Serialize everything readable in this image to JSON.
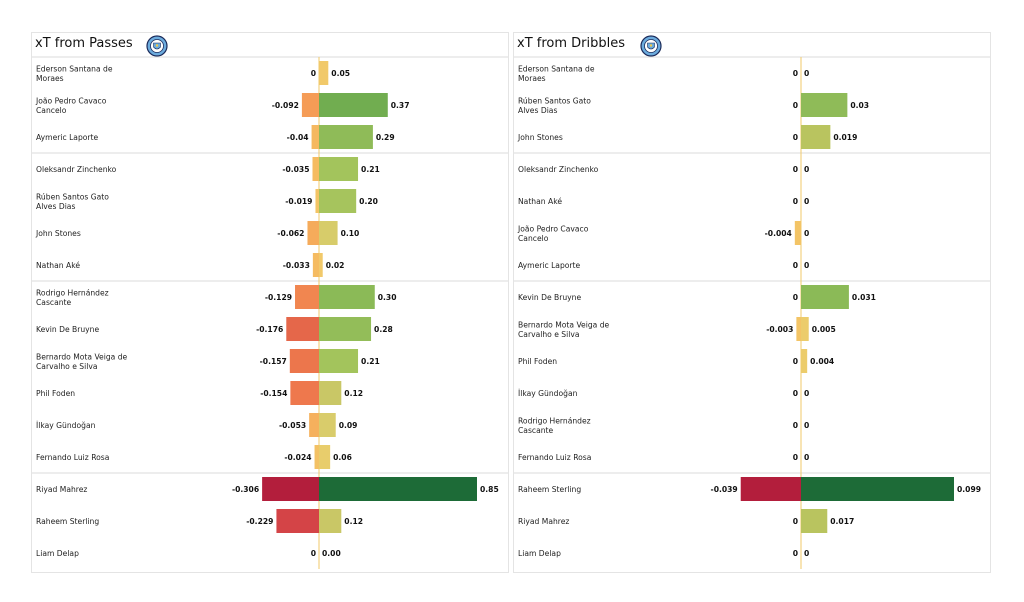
{
  "chart_data": [
    {
      "type": "bar",
      "title": "xT from Passes",
      "logo": "club-crest-icon",
      "scale_max": 0.85,
      "groups": [
        3,
        7,
        13,
        16
      ],
      "rows": [
        {
          "player": [
            "Ederson Santana de",
            "Moraes"
          ],
          "neg": 0,
          "pos": 0.05,
          "neg_label": "0",
          "pos_label": "0.05",
          "neg_color": "#f1c96a",
          "pos_color": "#f1c96a"
        },
        {
          "player": [
            "João Pedro Cavaco",
            "Cancelo"
          ],
          "neg": -0.092,
          "pos": 0.37,
          "neg_label": "-0.092",
          "pos_label": "0.37",
          "neg_color": "#f59c56",
          "pos_color": "#71ad50"
        },
        {
          "player": [
            "Aymeric  Laporte"
          ],
          "neg": -0.04,
          "pos": 0.29,
          "neg_label": "-0.04",
          "pos_label": "0.29",
          "neg_color": "#f5b860",
          "pos_color": "#8fbb58"
        },
        {
          "player": [
            "Oleksandr Zinchenko"
          ],
          "neg": -0.035,
          "pos": 0.21,
          "neg_label": "-0.035",
          "pos_label": "0.21",
          "neg_color": "#f5bb61",
          "pos_color": "#a3c45c"
        },
        {
          "player": [
            "Rúben  Santos Gato",
            "Alves Dias"
          ],
          "neg": -0.019,
          "pos": 0.2,
          "neg_label": "-0.019",
          "pos_label": "0.20",
          "neg_color": "#f3c466",
          "pos_color": "#a6c45d"
        },
        {
          "player": [
            "John Stones"
          ],
          "neg": -0.062,
          "pos": 0.1,
          "neg_label": "-0.062",
          "pos_label": "0.10",
          "neg_color": "#f5ab5b",
          "pos_color": "#d7cc6a"
        },
        {
          "player": [
            "Nathan Aké"
          ],
          "neg": -0.033,
          "pos": 0.02,
          "neg_label": "-0.033",
          "pos_label": "0.02",
          "neg_color": "#f5bb61",
          "pos_color": "#f1c96a"
        },
        {
          "player": [
            "Rodrigo Hernández",
            "Cascante"
          ],
          "neg": -0.129,
          "pos": 0.3,
          "neg_label": "-0.129",
          "pos_label": "0.30",
          "neg_color": "#f18650",
          "pos_color": "#8bba57"
        },
        {
          "player": [
            "Kevin De Bruyne"
          ],
          "neg": -0.176,
          "pos": 0.28,
          "neg_label": "-0.176",
          "pos_label": "0.28",
          "neg_color": "#e5674a",
          "pos_color": "#93bd59"
        },
        {
          "player": [
            "Bernardo Mota Veiga de",
            "Carvalho e Silva"
          ],
          "neg": -0.157,
          "pos": 0.21,
          "neg_label": "-0.157",
          "pos_label": "0.21",
          "neg_color": "#ec764c",
          "pos_color": "#a3c45c"
        },
        {
          "player": [
            "Phil Foden"
          ],
          "neg": -0.154,
          "pos": 0.12,
          "neg_label": "-0.154",
          "pos_label": "0.12",
          "neg_color": "#ee784d",
          "pos_color": "#c9c766"
        },
        {
          "player": [
            "İlkay Gündoğan"
          ],
          "neg": -0.053,
          "pos": 0.09,
          "neg_label": "-0.053",
          "pos_label": "0.09",
          "neg_color": "#f5b05d",
          "pos_color": "#d9cc6b"
        },
        {
          "player": [
            "Fernando Luiz Rosa"
          ],
          "neg": -0.024,
          "pos": 0.06,
          "neg_label": "-0.024",
          "pos_label": "0.06",
          "neg_color": "#f3c164",
          "pos_color": "#e8cd6c"
        },
        {
          "player": [
            "Riyad Mahrez"
          ],
          "neg": -0.306,
          "pos": 0.85,
          "neg_label": "-0.306",
          "pos_label": "0.85",
          "neg_color": "#b31e3c",
          "pos_color": "#1d6b37"
        },
        {
          "player": [
            "Raheem Sterling"
          ],
          "neg": -0.229,
          "pos": 0.12,
          "neg_label": "-0.229",
          "pos_label": "0.12",
          "neg_color": "#d44447",
          "pos_color": "#c9c766"
        },
        {
          "player": [
            "Liam Delap"
          ],
          "neg": 0,
          "pos": 0,
          "neg_label": "0",
          "pos_label": "0.00",
          "neg_color": "#f1c96a",
          "pos_color": "#f1c96a"
        }
      ]
    },
    {
      "type": "bar",
      "title": "xT from Dribbles",
      "logo": "club-crest-icon",
      "scale_max": 0.099,
      "groups": [
        3,
        7,
        13,
        16
      ],
      "rows": [
        {
          "player": [
            "Ederson Santana de",
            "Moraes"
          ],
          "neg": 0,
          "pos": 0,
          "neg_label": "0",
          "pos_label": "0",
          "neg_color": "#f1c96a",
          "pos_color": "#f1c96a"
        },
        {
          "player": [
            "Rúben  Santos Gato",
            "Alves Dias"
          ],
          "neg": 0,
          "pos": 0.03,
          "neg_label": "0",
          "pos_label": "0.03",
          "neg_color": "#f1c96a",
          "pos_color": "#8fbb58"
        },
        {
          "player": [
            "John Stones"
          ],
          "neg": 0,
          "pos": 0.019,
          "neg_label": "0",
          "pos_label": "0.019",
          "neg_color": "#f1c96a",
          "pos_color": "#b9c45f"
        },
        {
          "player": [
            "Oleksandr Zinchenko"
          ],
          "neg": 0,
          "pos": 0,
          "neg_label": "0",
          "pos_label": "0",
          "neg_color": "#f1c96a",
          "pos_color": "#f1c96a"
        },
        {
          "player": [
            "Nathan Aké"
          ],
          "neg": 0,
          "pos": 0,
          "neg_label": "0",
          "pos_label": "0",
          "neg_color": "#f1c96a",
          "pos_color": "#f1c96a"
        },
        {
          "player": [
            "João Pedro Cavaco",
            "Cancelo"
          ],
          "neg": -0.004,
          "pos": 0,
          "neg_label": "-0.004",
          "pos_label": "0",
          "neg_color": "#f3c466",
          "pos_color": "#f1c96a"
        },
        {
          "player": [
            "Aymeric  Laporte"
          ],
          "neg": 0,
          "pos": 0,
          "neg_label": "0",
          "pos_label": "0",
          "neg_color": "#f1c96a",
          "pos_color": "#f1c96a"
        },
        {
          "player": [
            "Kevin De Bruyne"
          ],
          "neg": 0,
          "pos": 0.031,
          "neg_label": "0",
          "pos_label": "0.031",
          "neg_color": "#f1c96a",
          "pos_color": "#8bba57"
        },
        {
          "player": [
            "Bernardo Mota Veiga de",
            "Carvalho e Silva"
          ],
          "neg": -0.003,
          "pos": 0.005,
          "neg_label": "-0.003",
          "pos_label": "0.005",
          "neg_color": "#f3c466",
          "pos_color": "#eccc6b"
        },
        {
          "player": [
            "Phil Foden"
          ],
          "neg": 0,
          "pos": 0.004,
          "neg_label": "0",
          "pos_label": "0.004",
          "neg_color": "#f1c96a",
          "pos_color": "#eccc6b"
        },
        {
          "player": [
            "İlkay Gündoğan"
          ],
          "neg": 0,
          "pos": 0,
          "neg_label": "0",
          "pos_label": "0",
          "neg_color": "#f1c96a",
          "pos_color": "#f1c96a"
        },
        {
          "player": [
            "Rodrigo Hernández",
            "Cascante"
          ],
          "neg": 0,
          "pos": 0,
          "neg_label": "0",
          "pos_label": "0",
          "neg_color": "#f1c96a",
          "pos_color": "#f1c96a"
        },
        {
          "player": [
            "Fernando Luiz Rosa"
          ],
          "neg": 0,
          "pos": 0,
          "neg_label": "0",
          "pos_label": "0",
          "neg_color": "#f1c96a",
          "pos_color": "#f1c96a"
        },
        {
          "player": [
            "Raheem Sterling"
          ],
          "neg": -0.039,
          "pos": 0.099,
          "neg_label": "-0.039",
          "pos_label": "0.099",
          "neg_color": "#b31e3c",
          "pos_color": "#1d6b37"
        },
        {
          "player": [
            "Riyad Mahrez"
          ],
          "neg": 0,
          "pos": 0.017,
          "neg_label": "0",
          "pos_label": "0.017",
          "neg_color": "#f1c96a",
          "pos_color": "#b9c45f"
        },
        {
          "player": [
            "Liam Delap"
          ],
          "neg": 0,
          "pos": 0,
          "neg_label": "0",
          "pos_label": "0",
          "neg_color": "#f1c96a",
          "pos_color": "#f1c96a"
        }
      ]
    }
  ]
}
